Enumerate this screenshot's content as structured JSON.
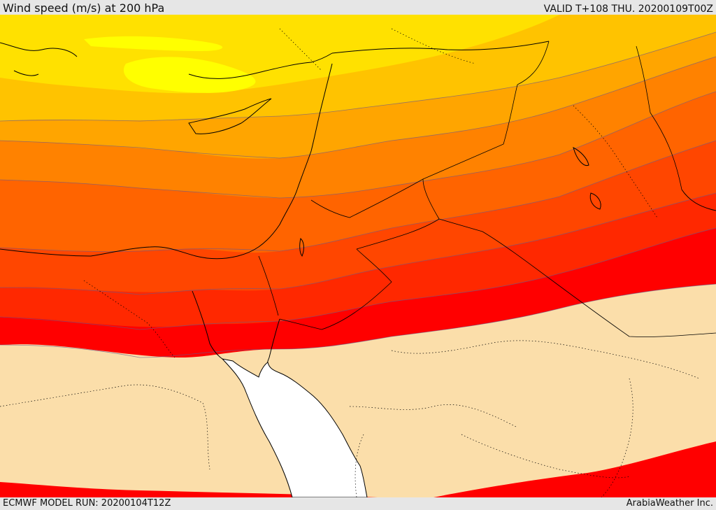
{
  "header": {
    "title": "Wind speed (m/s) at 200 hPa",
    "valid_time": "VALID T+108 THU. 20200109T00Z"
  },
  "footer": {
    "model_run": "ECMWF MODEL RUN: 20200104T12Z",
    "credit": "ArabiaWeather Inc."
  },
  "map": {
    "variable": "wind speed at 200 hPa",
    "colors": {
      "band_1": "#ffff00",
      "band_2": "#ffe100",
      "band_3": "#ffc300",
      "band_4": "#ffa500",
      "band_5": "#ff8200",
      "band_6": "#ff6400",
      "band_7": "#ff4600",
      "band_8": "#ff2800",
      "band_9": "#ff0000",
      "land_background": "#fbdeaa",
      "sea": "#ffffff",
      "coastline": "#000000"
    }
  }
}
